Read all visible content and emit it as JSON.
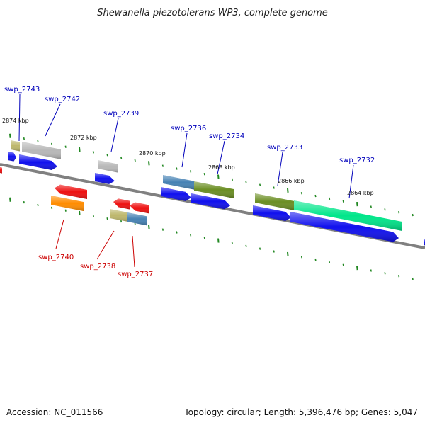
{
  "title": "Shewanella piezotolerans WP3, complete genome",
  "footer": {
    "accession": "Accession: NC_011566",
    "summary": "Topology: circular; Length: 5,396,476 bp; Genes: 5,047"
  },
  "kbp_labels": [
    "2874 kbp",
    "2872 kbp",
    "2870 kbp",
    "2868 kbp",
    "2866 kbp",
    "2864 kbp"
  ],
  "gene_labels_forward": [
    "swp_2743",
    "swp_2742",
    "swp_2739",
    "swp_2736",
    "swp_2734",
    "swp_2733",
    "swp_2732"
  ],
  "gene_labels_reverse": [
    "swp_2740",
    "swp_2738",
    "swp_2737"
  ],
  "colors": {
    "backbone": "#808080",
    "forward_label": "#0000bb",
    "reverse_label": "#cc0000",
    "cds_forward": "#1010ee",
    "cds_reverse": "#ee1010",
    "tick": "#228822",
    "olive": "#6b8e23",
    "khaki": "#bdb76b",
    "silver": "#b8b8b8",
    "steelblue": "#4682b4",
    "orange": "#ff8c00",
    "springgreen": "#00e68a"
  }
}
